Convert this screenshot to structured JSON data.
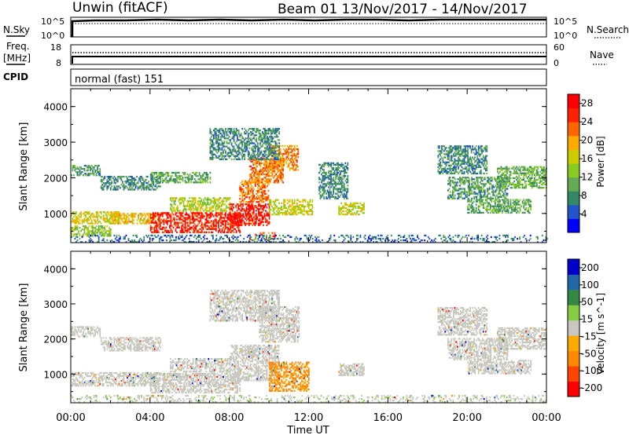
{
  "header": {
    "station": "Unwin (fitACF)",
    "beam_dates": "Beam 01  13/Nov/2017 - 14/Nov/2017"
  },
  "nsky_panel": {
    "left_label": "N.Sky",
    "right_label": "N.Search",
    "left_ticks": [
      "10^5",
      "10^0"
    ],
    "right_ticks": [
      "10^5",
      "10^0"
    ]
  },
  "freq_panel": {
    "left_label_line1": "Freq.",
    "left_label_line2": "[MHz]",
    "right_label": "Nave",
    "left_ticks": [
      "18",
      "8"
    ],
    "right_ticks": [
      "60",
      "0"
    ]
  },
  "cpid_panel": {
    "label": "CPID",
    "value": "normal (fast) 151"
  },
  "axes": {
    "ylabel": "Slant Range [km]",
    "yticks": [
      "4000",
      "3000",
      "2000",
      "1000"
    ],
    "xticks": [
      "00:00",
      "04:00",
      "08:00",
      "12:00",
      "16:00",
      "20:00",
      "00:00"
    ],
    "xlabel": "Time UT"
  },
  "chart_data": [
    {
      "type": "heatmap",
      "title": "",
      "xlabel": "",
      "ylabel": "Slant Range [km]",
      "xlim": [
        0,
        24
      ],
      "ylim": [
        180,
        4500
      ],
      "colorbar": {
        "label": "Power [dB]",
        "ticks": [
          "28",
          "24",
          "20",
          "16",
          "12",
          "8",
          "4"
        ],
        "tick_values": [
          28,
          24,
          20,
          16,
          12,
          8,
          4
        ],
        "range": [
          0,
          30
        ],
        "colors": [
          "#0000ff",
          "#2255cc",
          "#338866",
          "#66aa55",
          "#88cc22",
          "#cccc00",
          "#ffaa00",
          "#ff6600",
          "#ff2200",
          "#ff0000"
        ]
      },
      "regions": [
        {
          "t0": 0.0,
          "t1": 2.5,
          "r0": 700,
          "r1": 1050,
          "v": 17
        },
        {
          "t0": 0.0,
          "t1": 2.0,
          "r0": 350,
          "r1": 650,
          "v": 13
        },
        {
          "t0": 0.0,
          "t1": 1.5,
          "r0": 2050,
          "r1": 2350,
          "v": 9
        },
        {
          "t0": 1.5,
          "t1": 4.5,
          "r0": 1650,
          "r1": 2050,
          "v": 8
        },
        {
          "t0": 2.0,
          "t1": 4.5,
          "r0": 700,
          "r1": 1000,
          "v": 18
        },
        {
          "t0": 4.0,
          "t1": 8.5,
          "r0": 450,
          "r1": 1000,
          "v": 26
        },
        {
          "t0": 5.0,
          "t1": 8.0,
          "r0": 1050,
          "r1": 1450,
          "v": 15
        },
        {
          "t0": 4.0,
          "t1": 7.0,
          "r0": 1850,
          "r1": 2150,
          "v": 10
        },
        {
          "t0": 8.0,
          "t1": 10.0,
          "r0": 650,
          "r1": 1250,
          "v": 27
        },
        {
          "t0": 8.5,
          "t1": 10.0,
          "r0": 1300,
          "r1": 1900,
          "v": 22
        },
        {
          "t0": 9.0,
          "t1": 10.7,
          "r0": 1850,
          "r1": 2550,
          "v": 22
        },
        {
          "t0": 10.0,
          "t1": 11.5,
          "r0": 2200,
          "r1": 2900,
          "v": 21
        },
        {
          "t0": 10.0,
          "t1": 12.2,
          "r0": 950,
          "r1": 1400,
          "v": 16
        },
        {
          "t0": 9.0,
          "t1": 10.3,
          "r0": 250,
          "r1": 450,
          "v": 24
        },
        {
          "t0": 7.0,
          "t1": 10.5,
          "r0": 2500,
          "r1": 3400,
          "v": 8
        },
        {
          "t0": 12.5,
          "t1": 14.0,
          "r0": 1400,
          "r1": 2400,
          "v": 8
        },
        {
          "t0": 13.5,
          "t1": 14.8,
          "r0": 950,
          "r1": 1300,
          "v": 16
        },
        {
          "t0": 18.5,
          "t1": 21.0,
          "r0": 2100,
          "r1": 2900,
          "v": 8
        },
        {
          "t0": 19.0,
          "t1": 22.0,
          "r0": 1400,
          "r1": 2000,
          "v": 9
        },
        {
          "t0": 20.0,
          "t1": 23.2,
          "r0": 1000,
          "r1": 1400,
          "v": 10
        },
        {
          "t0": 21.5,
          "t1": 24.0,
          "r0": 1700,
          "r1": 2300,
          "v": 11
        },
        {
          "t0": 0.0,
          "t1": 24.0,
          "r0": 180,
          "r1": 400,
          "v": 6
        }
      ]
    },
    {
      "type": "heatmap",
      "title": "",
      "xlabel": "Time UT",
      "ylabel": "Slant Range [km]",
      "xlim": [
        0,
        24
      ],
      "ylim": [
        180,
        4500
      ],
      "colorbar": {
        "label": "Velocity [m s^-1]",
        "ticks": [
          "200",
          "100",
          "50",
          "15",
          "-15",
          "-50",
          "-100",
          "-200"
        ],
        "tick_values": [
          200,
          100,
          50,
          15,
          -15,
          -50,
          -100,
          -200
        ],
        "range": [
          -250,
          250
        ],
        "colors": [
          "#ff0000",
          "#ff4400",
          "#ff8800",
          "#ffaa00",
          "#c8c8c0",
          "#88cc44",
          "#338844",
          "#2266aa",
          "#0000cc"
        ]
      },
      "regions": [
        {
          "t0": 0.0,
          "t1": 4.5,
          "r0": 650,
          "r1": 1050,
          "v": 0
        },
        {
          "t0": 0.0,
          "t1": 1.5,
          "r0": 2050,
          "r1": 2350,
          "v": 0
        },
        {
          "t0": 1.5,
          "t1": 4.5,
          "r0": 1650,
          "r1": 2050,
          "v": 0
        },
        {
          "t0": 4.0,
          "t1": 8.5,
          "r0": 450,
          "r1": 1000,
          "v": 0
        },
        {
          "t0": 5.0,
          "t1": 8.0,
          "r0": 1050,
          "r1": 1450,
          "v": 0
        },
        {
          "t0": 8.0,
          "t1": 10.5,
          "r0": 800,
          "r1": 1800,
          "v": 0
        },
        {
          "t0": 9.5,
          "t1": 11.5,
          "r0": 1900,
          "r1": 2900,
          "v": 0
        },
        {
          "t0": 10.0,
          "t1": 12.0,
          "r0": 500,
          "r1": 1350,
          "v": -90
        },
        {
          "t0": 7.0,
          "t1": 10.5,
          "r0": 2500,
          "r1": 3400,
          "v": 0
        },
        {
          "t0": 13.5,
          "t1": 14.8,
          "r0": 950,
          "r1": 1300,
          "v": 0
        },
        {
          "t0": 18.5,
          "t1": 21.0,
          "r0": 2100,
          "r1": 2900,
          "v": 0
        },
        {
          "t0": 19.0,
          "t1": 22.0,
          "r0": 1400,
          "r1": 2000,
          "v": 0
        },
        {
          "t0": 20.0,
          "t1": 23.2,
          "r0": 1000,
          "r1": 1400,
          "v": 0
        },
        {
          "t0": 21.5,
          "t1": 24.0,
          "r0": 1700,
          "r1": 2300,
          "v": 0
        },
        {
          "t0": 0.0,
          "t1": 24.0,
          "r0": 180,
          "r1": 400,
          "v": 20
        }
      ]
    }
  ]
}
